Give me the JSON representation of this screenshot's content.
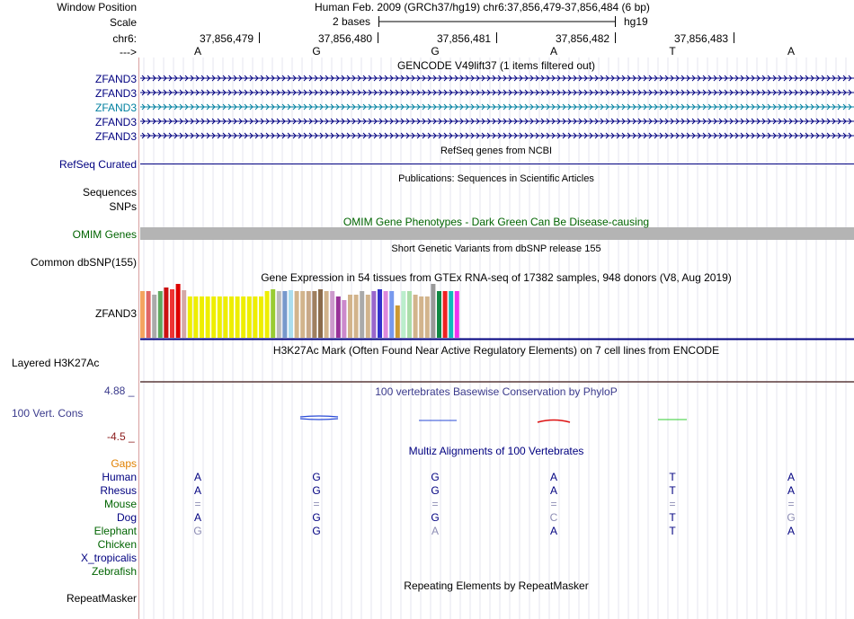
{
  "header": {
    "window_position_label": "Window Position",
    "window_position_value": "Human Feb. 2009 (GRCh37/hg19)   chr6:37,856,479-37,856,484 (6 bp)",
    "scale_label": "Scale",
    "scale_value": "2 bases",
    "scale_assembly": "hg19",
    "chrom_label": "chr6:",
    "strand_label": "--->",
    "positions": [
      "37,856,479",
      "37,856,480",
      "37,856,481",
      "37,856,482",
      "37,856,483"
    ],
    "bases": [
      "A",
      "G",
      "G",
      "A",
      "T",
      "A"
    ]
  },
  "gencode": {
    "title": "GENCODE V49lift37 (1 items filtered out)",
    "genes": [
      "ZFAND3",
      "ZFAND3",
      "ZFAND3",
      "ZFAND3",
      "ZFAND3"
    ]
  },
  "refseq": {
    "title": "RefSeq genes from NCBI",
    "label": "RefSeq Curated"
  },
  "publications": {
    "title": "Publications: Sequences in Scientific Articles",
    "label1": "Sequences",
    "label2": "SNPs"
  },
  "omim": {
    "title": "OMIM Gene Phenotypes - Dark Green Can Be Disease-causing",
    "label": "OMIM Genes"
  },
  "dbsnp": {
    "title": "Short Genetic Variants from dbSNP release 155",
    "label": "Common dbSNP(155)"
  },
  "gtex": {
    "title": "Gene Expression in 54 tissues from GTEx RNA-seq of 17382 samples, 948 donors (V8, Aug 2019)",
    "label": "ZFAND3",
    "bars": [
      {
        "h": 0.86,
        "c": "#f4a460"
      },
      {
        "h": 0.86,
        "c": "#e06666"
      },
      {
        "h": 0.8,
        "c": "#aaaaaa"
      },
      {
        "h": 0.86,
        "c": "#5fa85f"
      },
      {
        "h": 0.93,
        "c": "#cc1111"
      },
      {
        "h": 0.9,
        "c": "#ee3333"
      },
      {
        "h": 1.0,
        "c": "#dd0000"
      },
      {
        "h": 0.88,
        "c": "#d4a7a7"
      },
      {
        "h": 0.76,
        "c": "#eeee00"
      },
      {
        "h": 0.76,
        "c": "#eeee00"
      },
      {
        "h": 0.76,
        "c": "#eeee00"
      },
      {
        "h": 0.76,
        "c": "#eeee00"
      },
      {
        "h": 0.76,
        "c": "#eeee00"
      },
      {
        "h": 0.76,
        "c": "#eeee00"
      },
      {
        "h": 0.76,
        "c": "#eeee00"
      },
      {
        "h": 0.76,
        "c": "#eeee00"
      },
      {
        "h": 0.76,
        "c": "#eeee00"
      },
      {
        "h": 0.76,
        "c": "#eeee00"
      },
      {
        "h": 0.76,
        "c": "#eeee00"
      },
      {
        "h": 0.76,
        "c": "#eeee00"
      },
      {
        "h": 0.76,
        "c": "#eeee00"
      },
      {
        "h": 0.86,
        "c": "#eeee00"
      },
      {
        "h": 0.9,
        "c": "#99cc33"
      },
      {
        "h": 0.86,
        "c": "#bbbbbb"
      },
      {
        "h": 0.86,
        "c": "#7799cc"
      },
      {
        "h": 0.88,
        "c": "#aaddee"
      },
      {
        "h": 0.86,
        "c": "#d2b48c"
      },
      {
        "h": 0.86,
        "c": "#d2b48c"
      },
      {
        "h": 0.86,
        "c": "#c8a888"
      },
      {
        "h": 0.86,
        "c": "#a08060"
      },
      {
        "h": 0.9,
        "c": "#8b6b4b"
      },
      {
        "h": 0.86,
        "c": "#d2b48c"
      },
      {
        "h": 0.86,
        "c": "#cc99cc"
      },
      {
        "h": 0.76,
        "c": "#993399"
      },
      {
        "h": 0.7,
        "c": "#cc88cc"
      },
      {
        "h": 0.8,
        "c": "#d2b48c"
      },
      {
        "h": 0.8,
        "c": "#d2b48c"
      },
      {
        "h": 0.86,
        "c": "#aaaaaa"
      },
      {
        "h": 0.8,
        "c": "#d2b48c"
      },
      {
        "h": 0.86,
        "c": "#9966cc"
      },
      {
        "h": 0.9,
        "c": "#3333cc"
      },
      {
        "h": 0.86,
        "c": "#dd88dd"
      },
      {
        "h": 0.86,
        "c": "#7799ee"
      },
      {
        "h": 0.6,
        "c": "#cc9933"
      },
      {
        "h": 0.86,
        "c": "#bbeecc"
      },
      {
        "h": 0.86,
        "c": "#aaddaa"
      },
      {
        "h": 0.8,
        "c": "#d2b48c"
      },
      {
        "h": 0.76,
        "c": "#d2b48c"
      },
      {
        "h": 0.76,
        "c": "#d2b48c"
      },
      {
        "h": 1.0,
        "c": "#999999"
      },
      {
        "h": 0.86,
        "c": "#118844"
      },
      {
        "h": 0.86,
        "c": "#ee2222"
      },
      {
        "h": 0.86,
        "c": "#11bbbb"
      },
      {
        "h": 0.86,
        "c": "#ee33ee"
      }
    ]
  },
  "h3k27ac": {
    "title": "H3K27Ac Mark (Often Found Near Active Regulatory Elements) on 7 cell lines from ENCODE",
    "label": "Layered H3K27Ac"
  },
  "conservation": {
    "title": "100 vertebrates Basewise Conservation by PhyloP",
    "label": "100 Vert. Cons",
    "max_label": "4.88 _",
    "min_label": "-4.5 _",
    "colors": {
      "pos": "#2a4bd7",
      "neg": "#d11",
      "green": "#3c3"
    }
  },
  "multiz": {
    "title": "Multiz Alignments of 100 Vertebrates",
    "gaps_label": "Gaps",
    "species": [
      {
        "name": "Human",
        "color": "#000080",
        "bases": [
          "A",
          "G",
          "G",
          "A",
          "T",
          "A"
        ]
      },
      {
        "name": "Rhesus",
        "color": "#000080",
        "bases": [
          "A",
          "G",
          "G",
          "A",
          "T",
          "A"
        ]
      },
      {
        "name": "Mouse",
        "color": "#006400",
        "bases": [
          "=",
          "=",
          "=",
          "=",
          "=",
          "="
        ]
      },
      {
        "name": "Dog",
        "color": "#000080",
        "bases": [
          "A",
          "G",
          "G",
          "C",
          "T",
          "G"
        ]
      },
      {
        "name": "Elephant",
        "color": "#006400",
        "bases": [
          "G",
          "G",
          "A",
          "A",
          "T",
          "A"
        ]
      },
      {
        "name": "Chicken",
        "color": "#006400",
        "bases": []
      },
      {
        "name": "X_tropicalis",
        "color": "#000080",
        "bases": []
      },
      {
        "name": "Zebrafish",
        "color": "#006400",
        "bases": []
      }
    ]
  },
  "repeatmasker": {
    "title": "Repeating Elements by RepeatMasker",
    "label": "RepeatMasker"
  }
}
